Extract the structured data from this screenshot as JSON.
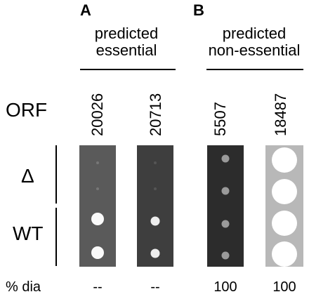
{
  "panels": [
    {
      "letter": "A",
      "group_label_line1": "predicted",
      "group_label_line2": "essential",
      "orfs": [
        {
          "orf": "20026",
          "dia": "--",
          "colors": {
            "bg": "#5a5a5a"
          }
        },
        {
          "orf": "20713",
          "dia": "--",
          "colors": {
            "bg": "#3e3e3e"
          }
        }
      ]
    },
    {
      "letter": "B",
      "group_label_line1": "predicted",
      "group_label_line2": "non-essential",
      "orfs": [
        {
          "orf": "5507",
          "dia": "100",
          "colors": {
            "bg": "#2c2c2c"
          }
        },
        {
          "orf": "18487",
          "dia": "100",
          "colors": {
            "bg": "#b8b8b8"
          }
        }
      ]
    }
  ],
  "rows": {
    "orf_label": "ORF",
    "delta_label": "Δ",
    "wt_label": "WT",
    "dia_label": "% dia"
  },
  "colors": {
    "colony": "#ffffff",
    "faint_colony": "#9a9a9a"
  }
}
